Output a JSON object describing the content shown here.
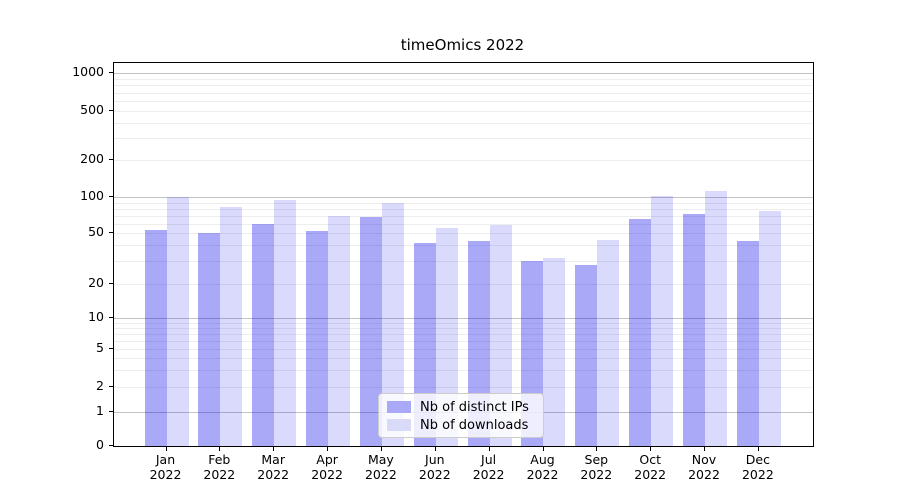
{
  "title": "timeOmics 2022",
  "chart_data": {
    "type": "bar",
    "title": "timeOmics 2022",
    "categories": [
      "Jan",
      "Feb",
      "Mar",
      "Apr",
      "May",
      "Jun",
      "Jul",
      "Aug",
      "Sep",
      "Oct",
      "Nov",
      "Dec"
    ],
    "category_year": "2022",
    "series": [
      {
        "name": "Nb of distinct IPs",
        "color": "rgba(10, 10, 235, 0.35)",
        "legend_color": "#a9a9f7",
        "values": [
          53,
          50,
          60,
          52,
          68,
          42,
          43,
          30,
          28,
          65,
          72,
          43
        ]
      },
      {
        "name": "Nb of downloads",
        "color": "rgba(10, 10, 235, 0.15)",
        "legend_color": "#d9d9f8",
        "values": [
          100,
          82,
          95,
          70,
          90,
          55,
          58,
          32,
          44,
          102,
          113,
          77
        ]
      }
    ],
    "xlabel": "",
    "ylabel": "",
    "y_axis": {
      "scale": "log-like (0 baseline, log decades above 1)",
      "tick_labels": [
        "0",
        "1",
        "2",
        "5",
        "10",
        "20",
        "50",
        "100",
        "200",
        "500",
        "1000"
      ],
      "tick_values": [
        0,
        1,
        2,
        5,
        10,
        20,
        50,
        100,
        200,
        500,
        1000
      ],
      "ylim": [
        0,
        1200
      ]
    },
    "grid": {
      "major": "on",
      "minor": "on"
    },
    "legend": {
      "position": "inside-bottom-center",
      "entries": [
        "Nb of distinct IPs",
        "Nb of downloads"
      ]
    },
    "colors": {
      "grid_major": "#c3c3c3",
      "grid_minor": "#ededed",
      "spine": "#000000",
      "text": "#000000"
    }
  }
}
